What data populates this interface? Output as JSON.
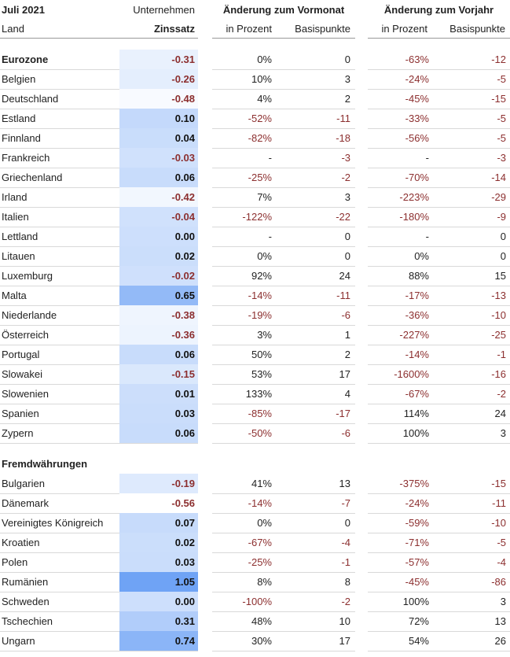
{
  "header": {
    "period": "Juli 2021",
    "sector": "Unternehmen",
    "land": "Land",
    "rate": "Zinssatz",
    "groups": [
      {
        "title": "Änderung zum Vormonat",
        "columns": [
          "in Prozent",
          "Basispunkte"
        ]
      },
      {
        "title": "Änderung zum Vorjahr",
        "columns": [
          "in Prozent",
          "Basispunkte"
        ]
      }
    ]
  },
  "sections": [
    {
      "total": [
        "Eurozone",
        "-0.31",
        "0%",
        "0",
        "-63%",
        "-12"
      ],
      "rows": [
        [
          "Belgien",
          "-0.26",
          "10%",
          "3",
          "-24%",
          "-5"
        ],
        [
          "Deutschland",
          "-0.48",
          "4%",
          "2",
          "-45%",
          "-15"
        ],
        [
          "Estland",
          "0.10",
          "-52%",
          "-11",
          "-33%",
          "-5"
        ],
        [
          "Finnland",
          "0.04",
          "-82%",
          "-18",
          "-56%",
          "-5"
        ],
        [
          "Frankreich",
          "-0.03",
          "-",
          "-3",
          "-",
          "-3"
        ],
        [
          "Griechenland",
          "0.06",
          "-25%",
          "-2",
          "-70%",
          "-14"
        ],
        [
          "Irland",
          "-0.42",
          "7%",
          "3",
          "-223%",
          "-29"
        ],
        [
          "Italien",
          "-0.04",
          "-122%",
          "-22",
          "-180%",
          "-9"
        ],
        [
          "Lettland",
          "0.00",
          "-",
          "0",
          "-",
          "0"
        ],
        [
          "Litauen",
          "0.02",
          "0%",
          "0",
          "0%",
          "0"
        ],
        [
          "Luxemburg",
          "-0.02",
          "92%",
          "24",
          "88%",
          "15"
        ],
        [
          "Malta",
          "0.65",
          "-14%",
          "-11",
          "-17%",
          "-13"
        ],
        [
          "Niederlande",
          "-0.38",
          "-19%",
          "-6",
          "-36%",
          "-10"
        ],
        [
          "Österreich",
          "-0.36",
          "3%",
          "1",
          "-227%",
          "-25"
        ],
        [
          "Portugal",
          "0.06",
          "50%",
          "2",
          "-14%",
          "-1"
        ],
        [
          "Slowakei",
          "-0.15",
          "53%",
          "17",
          "-1600%",
          "-16"
        ],
        [
          "Slowenien",
          "0.01",
          "133%",
          "4",
          "-67%",
          "-2"
        ],
        [
          "Spanien",
          "0.03",
          "-85%",
          "-17",
          "114%",
          "24"
        ],
        [
          "Zypern",
          "0.06",
          "-50%",
          "-6",
          "100%",
          "3"
        ]
      ]
    },
    {
      "title": "Fremdwährungen",
      "rows": [
        [
          "Bulgarien",
          "-0.19",
          "41%",
          "13",
          "-375%",
          "-15"
        ],
        [
          "Dänemark",
          "-0.56",
          "-14%",
          "-7",
          "-24%",
          "-11"
        ],
        [
          "Vereinigtes Königreich",
          "0.07",
          "0%",
          "0",
          "-59%",
          "-10"
        ],
        [
          "Kroatien",
          "0.02",
          "-67%",
          "-4",
          "-71%",
          "-5"
        ],
        [
          "Polen",
          "0.03",
          "-25%",
          "-1",
          "-57%",
          "-4"
        ],
        [
          "Rumänien",
          "1.05",
          "8%",
          "8",
          "-45%",
          "-86"
        ],
        [
          "Schweden",
          "0.00",
          "-100%",
          "-2",
          "100%",
          "3"
        ],
        [
          "Tschechien",
          "0.31",
          "48%",
          "10",
          "72%",
          "13"
        ],
        [
          "Ungarn",
          "0.74",
          "30%",
          "17",
          "54%",
          "26"
        ]
      ]
    }
  ]
}
